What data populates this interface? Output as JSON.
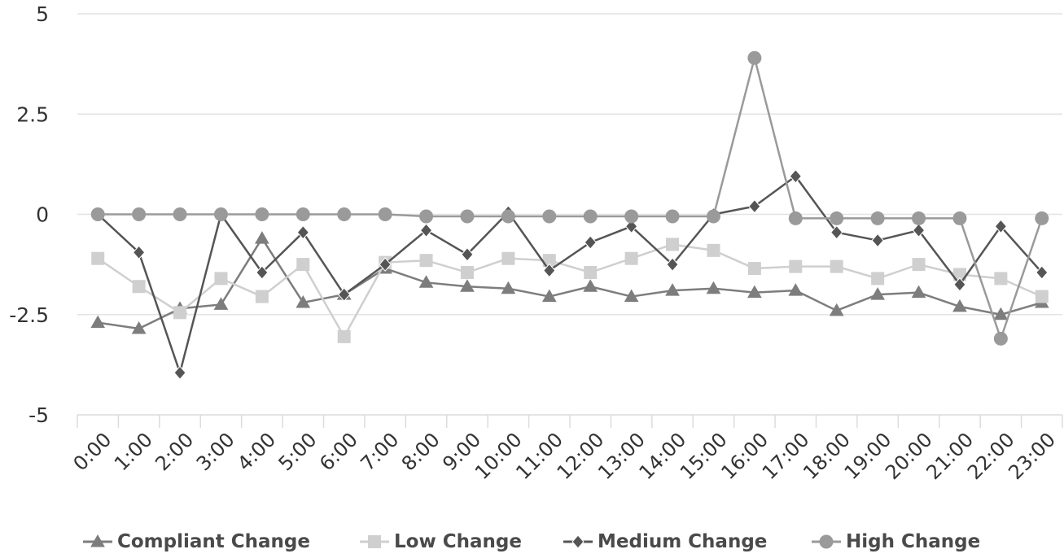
{
  "chart_data": {
    "type": "line",
    "title": "",
    "xlabel": "",
    "ylabel": "",
    "categories": [
      "0:00",
      "1:00",
      "2:00",
      "3:00",
      "4:00",
      "5:00",
      "6:00",
      "7:00",
      "8:00",
      "9:00",
      "10:00",
      "11:00",
      "12:00",
      "13:00",
      "14:00",
      "15:00",
      "16:00",
      "17:00",
      "18:00",
      "19:00",
      "20:00",
      "21:00",
      "22:00",
      "23:00"
    ],
    "ylim": [
      -5,
      5
    ],
    "yticks": [
      5,
      2.5,
      0,
      -2.5,
      -5
    ],
    "ytick_labels": [
      "5",
      "2.5",
      "0",
      "-2.5",
      "-5"
    ],
    "grid": true,
    "legend_position": "bottom",
    "series": [
      {
        "name": "Compliant Change",
        "marker": "triangle",
        "color": "#7d7d7d",
        "values": [
          -2.7,
          -2.85,
          -2.35,
          -2.25,
          -0.6,
          -2.2,
          -2.0,
          -1.35,
          -1.7,
          -1.8,
          -1.85,
          -2.05,
          -1.8,
          -2.05,
          -1.9,
          -1.85,
          -1.95,
          -1.9,
          -2.4,
          -2.0,
          -1.95,
          -2.3,
          -2.5,
          -2.2
        ]
      },
      {
        "name": "Low Change",
        "marker": "square",
        "color": "#cfcfcf",
        "values": [
          -1.1,
          -1.8,
          -2.45,
          -1.6,
          -2.05,
          -1.25,
          -3.05,
          -1.2,
          -1.15,
          -1.45,
          -1.1,
          -1.15,
          -1.45,
          -1.1,
          -0.75,
          -0.9,
          -1.35,
          -1.3,
          -1.3,
          -1.6,
          -1.25,
          -1.5,
          -1.6,
          -2.05
        ]
      },
      {
        "name": "Medium Change",
        "marker": "diamond",
        "color": "#555555",
        "values": [
          0.0,
          -0.95,
          -3.95,
          0.0,
          -1.45,
          -0.45,
          -2.0,
          -1.25,
          -0.4,
          -1.0,
          0.05,
          -1.4,
          -0.7,
          -0.3,
          -1.25,
          0.0,
          0.2,
          0.95,
          -0.45,
          -0.65,
          -0.4,
          -1.75,
          -0.3,
          -1.45
        ]
      },
      {
        "name": "High Change",
        "marker": "circle",
        "color": "#9a9a9a",
        "values": [
          0.0,
          0.0,
          0.0,
          0.0,
          0.0,
          0.0,
          0.0,
          0.0,
          -0.05,
          -0.05,
          -0.05,
          -0.05,
          -0.05,
          -0.05,
          -0.05,
          -0.05,
          3.9,
          -0.1,
          -0.1,
          -0.1,
          -0.1,
          -0.1,
          -3.1,
          -0.1
        ]
      }
    ]
  }
}
